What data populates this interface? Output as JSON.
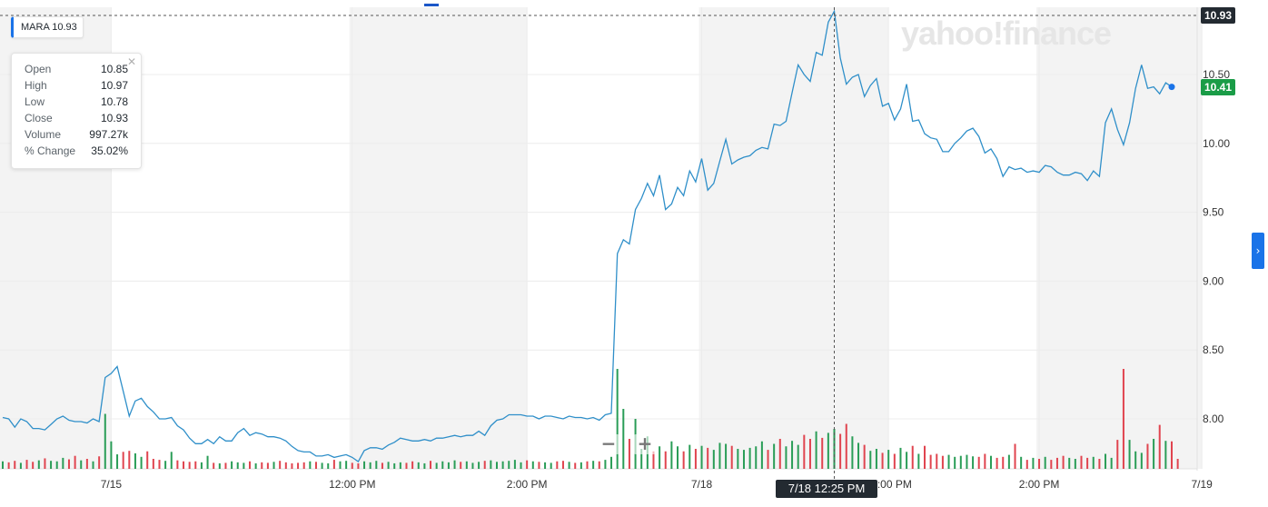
{
  "ticker": {
    "symbol": "MARA",
    "price": "10.93"
  },
  "brand": {
    "logo_text": "yahoo!finance",
    "accent": "#1a73e8"
  },
  "tooltip": {
    "rows": [
      {
        "label": "Open",
        "value": "10.85"
      },
      {
        "label": "High",
        "value": "10.97"
      },
      {
        "label": "Low",
        "value": "10.78"
      },
      {
        "label": "Close",
        "value": "10.93"
      },
      {
        "label": "Volume",
        "value": "997.27k"
      },
      {
        "label": "% Change",
        "value": "35.02%"
      }
    ],
    "close_icon": "close-icon"
  },
  "crosshair": {
    "label": "7/18 12:25 PM",
    "price_label": "10.93",
    "price_color": "#232a31"
  },
  "last_price": {
    "label": "10.41",
    "color": "#1a9c47"
  },
  "zoom": {
    "minus": "−",
    "plus": "+"
  },
  "side_arrow": {
    "glyph": "›",
    "icon": "chevron-right-icon"
  },
  "chart_data": {
    "type": "line",
    "title": "",
    "xlabel": "",
    "ylabel": "",
    "ylim": [
      7.65,
      11.0
    ],
    "y_ticks": [
      8.0,
      8.5,
      9.0,
      9.5,
      10.0,
      10.5
    ],
    "y_tick_labels": [
      "8.00",
      "8.50",
      "9.00",
      "9.50",
      "10.00",
      "10.50"
    ],
    "x_tick_labels": [
      "7/15",
      "12:00 PM",
      "2:00 PM",
      "7/18",
      "12:00 PM",
      "2:00 PM",
      "7/19"
    ],
    "line_color": "#2f8fc9",
    "up_color": "#2a9d57",
    "down_color": "#e0444f",
    "series": [
      {
        "values": [
          8.01,
          8.0,
          7.94,
          8.0,
          7.98,
          7.93,
          7.93,
          7.92,
          7.96,
          8.0,
          8.02,
          7.99,
          7.98,
          7.98,
          7.97,
          8.0,
          7.98,
          8.3,
          8.33,
          8.38,
          8.2,
          8.02,
          8.13,
          8.15,
          8.09,
          8.05,
          8.0,
          8.0,
          8.01,
          7.95,
          7.92,
          7.86,
          7.82,
          7.82,
          7.85,
          7.82,
          7.87,
          7.84,
          7.84,
          7.9,
          7.93,
          7.88,
          7.9,
          7.89,
          7.87,
          7.87,
          7.86,
          7.84,
          7.8,
          7.77,
          7.76,
          7.76,
          7.73,
          7.73,
          7.74,
          7.72,
          7.73,
          7.74,
          7.72,
          7.69,
          7.77,
          7.79,
          7.79,
          7.78,
          7.81,
          7.83,
          7.86,
          7.85,
          7.84,
          7.84,
          7.85,
          7.84,
          7.86,
          7.86,
          7.87,
          7.88,
          7.87,
          7.88,
          7.88,
          7.91,
          7.88,
          7.95,
          7.99,
          8.0,
          8.03,
          8.03,
          8.03,
          8.02,
          8.02,
          8.0,
          8.02,
          8.02,
          8.01,
          8.0,
          8.02,
          8.01,
          8.01,
          8.0,
          8.01,
          7.99,
          8.03,
          8.04,
          9.2,
          9.3,
          9.27,
          9.52,
          9.6,
          9.71,
          9.62,
          9.77,
          9.52,
          9.56,
          9.68,
          9.62,
          9.8,
          9.72,
          9.89,
          9.66,
          9.71,
          9.87,
          10.03,
          9.85,
          9.88,
          9.9,
          9.91,
          9.95,
          9.97,
          9.96,
          10.14,
          10.13,
          10.16,
          10.37,
          10.57,
          10.5,
          10.45,
          10.66,
          10.64,
          10.88,
          10.96,
          10.62,
          10.43,
          10.48,
          10.5,
          10.34,
          10.42,
          10.47,
          10.27,
          10.29,
          10.17,
          10.25,
          10.43,
          10.16,
          10.17,
          10.07,
          10.04,
          10.03,
          9.94,
          9.94,
          10.0,
          10.04,
          10.09,
          10.11,
          10.05,
          9.93,
          9.96,
          9.89,
          9.76,
          9.83,
          9.81,
          9.82,
          9.79,
          9.8,
          9.79,
          9.84,
          9.83,
          9.79,
          9.77,
          9.77,
          9.79,
          9.78,
          9.73,
          9.8,
          9.76,
          10.15,
          10.25,
          10.1,
          9.99,
          10.15,
          10.4,
          10.57,
          10.4,
          10.41,
          10.36,
          10.44,
          10.41
        ]
      }
    ],
    "volume": [
      1.5,
      1.3,
      1.6,
      1.2,
      1.8,
      1.4,
      1.7,
      2.1,
      1.6,
      1.5,
      2.2,
      1.9,
      2.6,
      1.7,
      2.0,
      1.5,
      2.5,
      11.0,
      5.5,
      2.9,
      3.4,
      3.6,
      3.1,
      2.4,
      3.5,
      2.0,
      1.8,
      1.6,
      3.4,
      1.7,
      1.5,
      1.4,
      1.5,
      1.3,
      2.6,
      1.2,
      1.1,
      1.2,
      1.5,
      1.3,
      1.2,
      1.5,
      1.1,
      1.3,
      1.2,
      1.4,
      1.6,
      1.3,
      1.1,
      1.2,
      1.3,
      1.5,
      1.4,
      1.2,
      1.1,
      1.8,
      1.5,
      1.6,
      1.2,
      1.1,
      1.5,
      1.3,
      1.6,
      1.2,
      1.4,
      1.1,
      1.3,
      1.2,
      1.5,
      1.3,
      1.1,
      1.6,
      1.2,
      1.5,
      1.3,
      1.7,
      1.4,
      1.5,
      1.2,
      1.4,
      1.6,
      1.7,
      1.4,
      1.5,
      1.6,
      1.8,
      1.3,
      1.7,
      1.5,
      1.4,
      1.3,
      1.2,
      1.5,
      1.6,
      1.4,
      1.2,
      1.3,
      1.5,
      1.6,
      1.5,
      1.8,
      2.4,
      20.0,
      12.0,
      6.0,
      10.0,
      4.0,
      6.5,
      3.5,
      4.5,
      3.5,
      5.5,
      4.5,
      3.5,
      4.8,
      4.0,
      4.6,
      4.2,
      3.8,
      5.2,
      5.0,
      4.6,
      4.0,
      3.8,
      4.2,
      4.5,
      5.5,
      3.8,
      5.0,
      6.0,
      4.5,
      5.6,
      4.8,
      6.8,
      6.0,
      7.5,
      6.2,
      7.2,
      8.0,
      7.0,
      9.0,
      6.5,
      5.2,
      4.8,
      3.6,
      4.0,
      3.2,
      3.8,
      3.0,
      4.2,
      3.4,
      4.6,
      3.0,
      4.6,
      2.8,
      3.0,
      2.6,
      2.8,
      2.4,
      2.6,
      2.8,
      2.5,
      2.4,
      3.0,
      2.6,
      2.2,
      2.4,
      2.8,
      5.0,
      2.4,
      1.8,
      2.2,
      2.0,
      2.4,
      1.8,
      2.2,
      2.6,
      2.2,
      2.0,
      2.6,
      2.2,
      2.4,
      2.0,
      3.0,
      2.2,
      5.8,
      20.0,
      5.8,
      3.5,
      3.2,
      5.0,
      6.0,
      8.8,
      5.6,
      5.5,
      2.0
    ],
    "session_shading": [
      [
        0,
        15.5
      ],
      [
        104,
        104
      ],
      [
        146,
        159
      ]
    ]
  }
}
